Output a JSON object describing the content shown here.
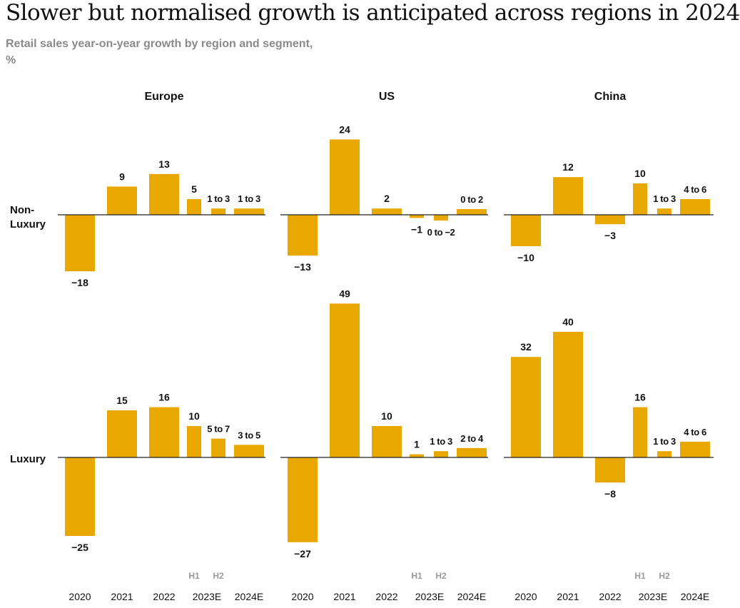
{
  "title": "Slower but normalised growth is anticipated across regions in 2024",
  "subtitle": "Retail sales year-on-year growth by region and segment,",
  "unit": "%",
  "colors": {
    "bar": "#E8A800",
    "axis": "#222222",
    "text": "#111111",
    "muted": "#9a9a9a"
  },
  "chart_data": {
    "type": "bar",
    "categories": [
      "2020",
      "2021",
      "2022",
      "2023E",
      "2024E"
    ],
    "half_labels": [
      "H1",
      "H2"
    ],
    "regions": [
      "Europe",
      "US",
      "China"
    ],
    "segments": [
      "Non-Luxury",
      "Luxury"
    ],
    "panels": [
      {
        "region": "Europe",
        "segment": "Non-Luxury",
        "bars": [
          {
            "category": "2020",
            "value": -18,
            "label": "−18"
          },
          {
            "category": "2021",
            "value": 9,
            "label": "9"
          },
          {
            "category": "2022",
            "value": 13,
            "label": "13"
          },
          {
            "category": "2023E H1",
            "value": 5,
            "label": "5"
          },
          {
            "category": "2023E H2",
            "value": 2,
            "label": "1 to 3",
            "range": [
              1,
              3
            ]
          },
          {
            "category": "2024E",
            "value": 2,
            "label": "1 to 3",
            "range": [
              1,
              3
            ]
          }
        ]
      },
      {
        "region": "US",
        "segment": "Non-Luxury",
        "bars": [
          {
            "category": "2020",
            "value": -13,
            "label": "−13"
          },
          {
            "category": "2021",
            "value": 24,
            "label": "24"
          },
          {
            "category": "2022",
            "value": 2,
            "label": "2"
          },
          {
            "category": "2023E H1",
            "value": -1,
            "label": "−1"
          },
          {
            "category": "2023E H2",
            "value": -1,
            "label": "0 to −2",
            "range": [
              0,
              -2
            ]
          },
          {
            "category": "2024E",
            "value": 1,
            "label": "0 to 2",
            "range": [
              0,
              2
            ]
          }
        ]
      },
      {
        "region": "China",
        "segment": "Non-Luxury",
        "bars": [
          {
            "category": "2020",
            "value": -10,
            "label": "−10"
          },
          {
            "category": "2021",
            "value": 12,
            "label": "12"
          },
          {
            "category": "2022",
            "value": -3,
            "label": "−3"
          },
          {
            "category": "2023E H1",
            "value": 10,
            "label": "10"
          },
          {
            "category": "2023E H2",
            "value": 2,
            "label": "1 to 3",
            "range": [
              1,
              3
            ]
          },
          {
            "category": "2024E",
            "value": 5,
            "label": "4 to 6",
            "range": [
              4,
              6
            ]
          }
        ]
      },
      {
        "region": "Europe",
        "segment": "Luxury",
        "bars": [
          {
            "category": "2020",
            "value": -25,
            "label": "−25"
          },
          {
            "category": "2021",
            "value": 15,
            "label": "15"
          },
          {
            "category": "2022",
            "value": 16,
            "label": "16"
          },
          {
            "category": "2023E H1",
            "value": 10,
            "label": "10"
          },
          {
            "category": "2023E H2",
            "value": 6,
            "label": "5 to 7",
            "range": [
              5,
              7
            ]
          },
          {
            "category": "2024E",
            "value": 4,
            "label": "3 to 5",
            "range": [
              3,
              5
            ]
          }
        ]
      },
      {
        "region": "US",
        "segment": "Luxury",
        "bars": [
          {
            "category": "2020",
            "value": -27,
            "label": "−27"
          },
          {
            "category": "2021",
            "value": 49,
            "label": "49"
          },
          {
            "category": "2022",
            "value": 10,
            "label": "10"
          },
          {
            "category": "2023E H1",
            "value": 1,
            "label": "1"
          },
          {
            "category": "2023E H2",
            "value": 2,
            "label": "1 to 3",
            "range": [
              1,
              3
            ]
          },
          {
            "category": "2024E",
            "value": 3,
            "label": "2 to 4",
            "range": [
              2,
              4
            ]
          }
        ]
      },
      {
        "region": "China",
        "segment": "Luxury",
        "bars": [
          {
            "category": "2020",
            "value": 32,
            "label": "32"
          },
          {
            "category": "2021",
            "value": 40,
            "label": "40"
          },
          {
            "category": "2022",
            "value": -8,
            "label": "−8"
          },
          {
            "category": "2023E H1",
            "value": 16,
            "label": "16"
          },
          {
            "category": "2023E H2",
            "value": 2,
            "label": "1 to 3",
            "range": [
              1,
              3
            ]
          },
          {
            "category": "2024E",
            "value": 5,
            "label": "4 to 6",
            "range": [
              4,
              6
            ]
          }
        ]
      }
    ]
  }
}
